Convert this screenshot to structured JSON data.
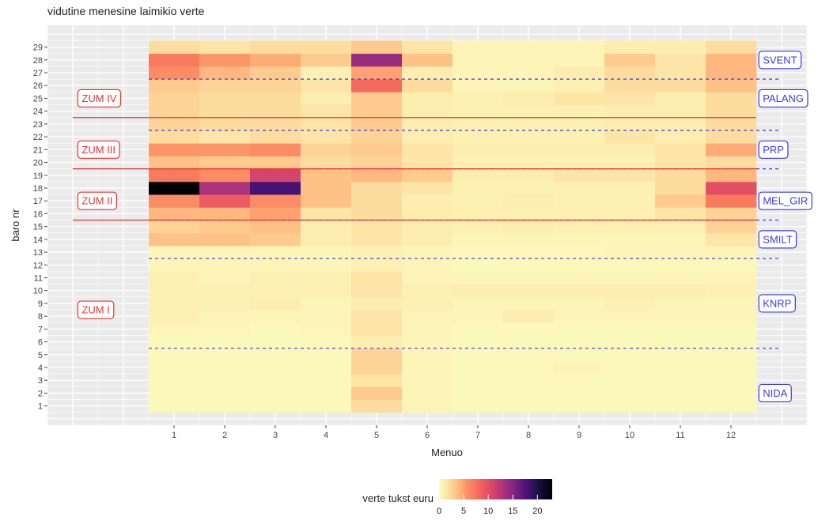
{
  "chart_data": {
    "type": "heatmap",
    "title": "vidutine menesine laimikio verte",
    "xlabel": "Menuo",
    "ylabel": "baro nr",
    "x": [
      1,
      2,
      3,
      4,
      5,
      6,
      7,
      8,
      9,
      10,
      11,
      12
    ],
    "y": [
      1,
      2,
      3,
      4,
      5,
      6,
      7,
      8,
      9,
      10,
      11,
      12,
      13,
      14,
      15,
      16,
      17,
      18,
      19,
      20,
      21,
      22,
      23,
      24,
      25,
      26,
      27,
      28,
      29
    ],
    "values_by_row_y1_to_y29": [
      [
        0.3,
        0.3,
        0.3,
        0.3,
        2.0,
        0.5,
        0.3,
        0.3,
        0.3,
        0.3,
        0.3,
        0.3
      ],
      [
        0.3,
        0.3,
        0.3,
        0.3,
        3.0,
        0.5,
        0.3,
        0.3,
        0.3,
        0.3,
        0.3,
        0.3
      ],
      [
        0.3,
        0.3,
        0.3,
        0.3,
        1.5,
        0.5,
        0.3,
        0.3,
        0.3,
        0.3,
        0.3,
        0.3
      ],
      [
        0.3,
        0.3,
        0.3,
        0.3,
        2.5,
        0.5,
        0.3,
        0.3,
        0.5,
        0.3,
        0.3,
        0.3
      ],
      [
        0.3,
        0.3,
        0.3,
        0.3,
        2.5,
        0.5,
        0.3,
        0.3,
        0.3,
        0.3,
        0.3,
        0.3
      ],
      [
        0.3,
        0.3,
        0.3,
        0.3,
        1.0,
        0.5,
        0.3,
        0.3,
        0.3,
        0.3,
        0.3,
        0.3
      ],
      [
        0.5,
        0.5,
        0.3,
        0.5,
        1.5,
        0.5,
        0.3,
        0.3,
        0.3,
        0.3,
        0.3,
        0.3
      ],
      [
        0.8,
        0.5,
        0.5,
        0.5,
        1.5,
        0.5,
        0.5,
        1.0,
        0.5,
        0.5,
        0.5,
        0.5
      ],
      [
        0.8,
        0.8,
        1.0,
        0.5,
        1.0,
        0.8,
        0.5,
        0.5,
        0.5,
        0.8,
        0.5,
        0.5
      ],
      [
        0.8,
        0.8,
        0.8,
        0.8,
        1.5,
        0.8,
        1.0,
        1.0,
        1.0,
        1.0,
        1.0,
        0.8
      ],
      [
        0.8,
        0.5,
        0.8,
        0.8,
        1.5,
        0.5,
        0.5,
        0.5,
        0.5,
        0.5,
        0.5,
        0.5
      ],
      [
        0.5,
        0.5,
        0.5,
        0.5,
        0.8,
        0.5,
        0.3,
        0.3,
        0.3,
        0.3,
        0.3,
        0.3
      ],
      [
        0.5,
        0.5,
        0.5,
        0.5,
        0.8,
        0.5,
        0.3,
        0.3,
        0.3,
        0.5,
        0.5,
        0.5
      ],
      [
        3.5,
        3.5,
        3.0,
        1.0,
        1.5,
        1.0,
        0.5,
        0.5,
        0.5,
        0.5,
        0.5,
        1.5
      ],
      [
        2.5,
        3.0,
        3.5,
        1.0,
        1.5,
        1.0,
        0.8,
        1.0,
        0.8,
        0.8,
        0.8,
        2.5
      ],
      [
        4.0,
        4.0,
        5.0,
        1.5,
        2.0,
        1.0,
        0.8,
        0.8,
        0.8,
        0.8,
        1.5,
        2.5
      ],
      [
        6.0,
        9.0,
        6.0,
        3.5,
        2.0,
        1.0,
        0.8,
        1.0,
        0.8,
        0.8,
        3.0,
        7.0
      ],
      [
        23.0,
        13.0,
        18.0,
        3.5,
        2.0,
        1.5,
        0.8,
        0.8,
        0.8,
        0.8,
        2.0,
        10.0
      ],
      [
        7.0,
        6.0,
        11.0,
        3.5,
        4.0,
        3.0,
        1.0,
        1.0,
        1.5,
        1.5,
        2.0,
        4.0
      ],
      [
        3.5,
        3.0,
        3.0,
        2.0,
        2.5,
        1.5,
        0.8,
        0.8,
        0.8,
        0.8,
        1.5,
        2.0
      ],
      [
        5.5,
        5.5,
        6.0,
        2.5,
        3.0,
        1.5,
        1.0,
        1.0,
        1.0,
        1.0,
        1.5,
        4.5
      ],
      [
        2.0,
        1.5,
        2.0,
        1.5,
        2.5,
        1.0,
        0.8,
        0.8,
        0.8,
        1.5,
        1.0,
        2.0
      ],
      [
        2.5,
        2.0,
        2.0,
        1.5,
        3.0,
        1.0,
        0.8,
        0.8,
        0.8,
        1.0,
        1.0,
        2.0
      ],
      [
        2.5,
        2.0,
        2.0,
        1.5,
        3.0,
        1.0,
        0.8,
        0.8,
        0.8,
        1.0,
        1.0,
        2.0
      ],
      [
        2.5,
        2.0,
        2.0,
        1.0,
        3.0,
        1.0,
        0.8,
        1.0,
        1.5,
        1.5,
        1.0,
        2.0
      ],
      [
        3.0,
        2.5,
        2.5,
        1.5,
        8.0,
        2.0,
        0.5,
        0.5,
        0.8,
        2.0,
        2.0,
        3.5
      ],
      [
        6.0,
        4.0,
        3.0,
        0.8,
        5.0,
        1.0,
        0.5,
        0.5,
        1.0,
        2.0,
        1.5,
        4.0
      ],
      [
        7.0,
        5.5,
        4.5,
        3.0,
        14.0,
        3.5,
        0.5,
        0.5,
        0.5,
        3.0,
        1.5,
        4.0
      ],
      [
        2.0,
        1.5,
        2.0,
        2.0,
        3.0,
        1.5,
        0.5,
        0.5,
        0.5,
        1.0,
        1.0,
        2.0
      ]
    ],
    "color_scale": {
      "name": "magma (reversed)",
      "domain": [
        0,
        23
      ],
      "stops": [
        "#fcfdbf",
        "#fddea0",
        "#febb81",
        "#fc9065",
        "#f7705c",
        "#e75263",
        "#cd4071",
        "#a3307e",
        "#7e2482",
        "#56147d",
        "#2e1160",
        "#0f0a2e",
        "#000004"
      ]
    },
    "legend": {
      "title": "verte tukst euru",
      "ticks": [
        "0",
        "5",
        "10",
        "15",
        "20"
      ],
      "position": "bottom"
    },
    "zones": [
      {
        "label": "ZUM IV",
        "label_y": 25,
        "line_y": 23.5
      },
      {
        "label": "ZUM III",
        "label_y": 21,
        "line_y": 19.5
      },
      {
        "label": "ZUM II",
        "label_y": 17,
        "line_y": 15.5
      },
      {
        "label": "ZUM I",
        "label_y": 8.5
      }
    ],
    "zone_color": "#e8332e",
    "regions": [
      {
        "label": "SVENT",
        "label_y": 28
      },
      {
        "label": "PALANG",
        "label_y": 25
      },
      {
        "label": "PRP",
        "label_y": 21
      },
      {
        "label": "MEL_GIR",
        "label_y": 17
      },
      {
        "label": "SMILT",
        "label_y": 14
      },
      {
        "label": "KNRP",
        "label_y": 9
      },
      {
        "label": "NIDA",
        "label_y": 2
      }
    ],
    "region_boundaries_y": [
      26.5,
      22.5,
      19.5,
      15.5,
      12.5,
      5.5
    ],
    "region_color": "#3a3ae8",
    "grid": true,
    "panel_background": "#ebebeb"
  }
}
